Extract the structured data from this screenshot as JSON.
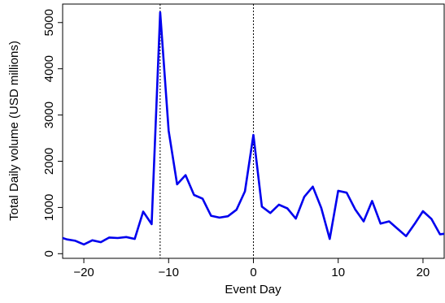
{
  "chart_data": {
    "type": "line",
    "title": "",
    "xlabel": "Event Day",
    "ylabel": "Total Daily volume (USD millions)",
    "xlim": [
      -22.5,
      22.5
    ],
    "ylim": [
      -100,
      5400
    ],
    "xticks": [
      -20,
      -10,
      0,
      10,
      20
    ],
    "xtick_labels": [
      "−20",
      "−10",
      "0",
      "10",
      "20"
    ],
    "yticks": [
      0,
      1000,
      2000,
      3000,
      4000,
      5000
    ],
    "ytick_labels": [
      "0",
      "1000",
      "2000",
      "3000",
      "4000",
      "5000"
    ],
    "grid": false,
    "legend": "none",
    "vlines": [
      -11,
      0
    ],
    "series": [
      {
        "color": "#0000ee",
        "x": [
          -22.5,
          -22,
          -21,
          -20,
          -19,
          -18,
          -17,
          -16,
          -15,
          -14,
          -13,
          -12,
          -11,
          -10,
          -9,
          -8,
          -7,
          -6,
          -5,
          -4,
          -3,
          -2,
          -1,
          0,
          1,
          2,
          3,
          4,
          5,
          6,
          7,
          8,
          9,
          10,
          11,
          12,
          13,
          14,
          15,
          16,
          17,
          18,
          19,
          20,
          21,
          22,
          22.5
        ],
        "y": [
          340,
          310,
          280,
          200,
          290,
          250,
          350,
          340,
          360,
          320,
          910,
          640,
          5220,
          2660,
          1500,
          1700,
          1270,
          1190,
          820,
          780,
          810,
          950,
          1350,
          2570,
          1020,
          880,
          1060,
          980,
          760,
          1230,
          1450,
          990,
          320,
          1360,
          1320,
          960,
          700,
          1140,
          650,
          700,
          540,
          380,
          640,
          920,
          750,
          420,
          430
        ]
      }
    ]
  }
}
